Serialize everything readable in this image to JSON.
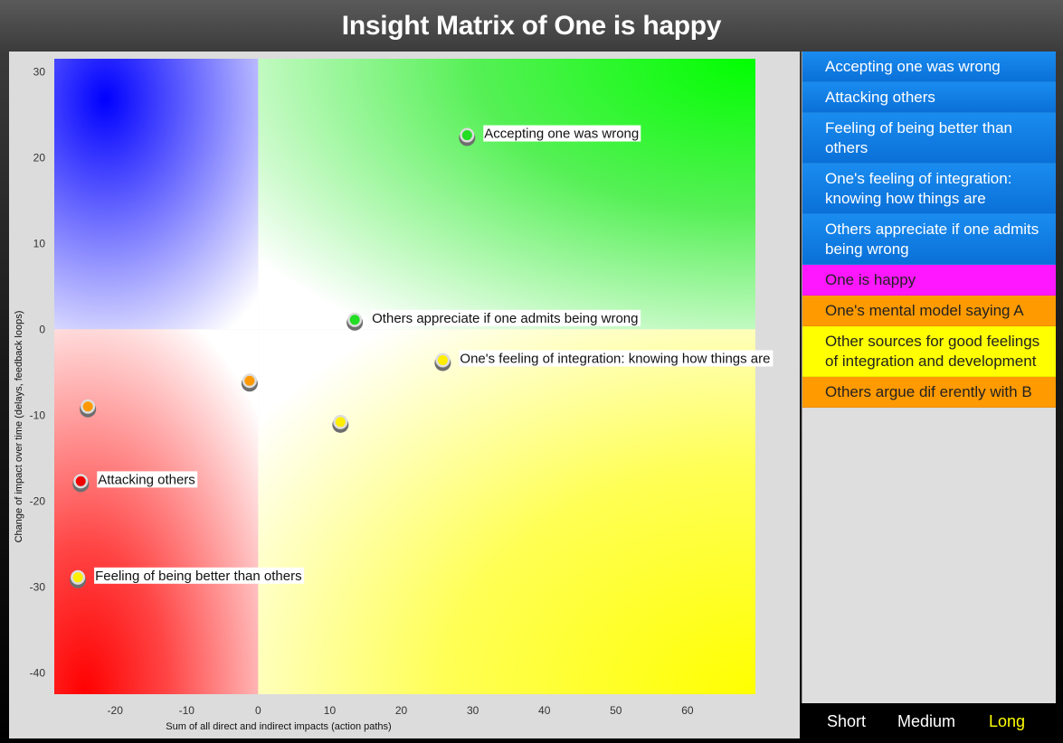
{
  "title": "Insight Matrix of One is happy",
  "sidebar": {
    "items": [
      {
        "label": "Accepting one was wrong",
        "style": "blue"
      },
      {
        "label": "Attacking others",
        "style": "blue"
      },
      {
        "label": "Feeling of being better than others",
        "style": "blue"
      },
      {
        "label": "One's feeling of integration: knowing how things are",
        "style": "blue"
      },
      {
        "label": "Others appreciate if one admits being wrong",
        "style": "blue"
      },
      {
        "label": "One is happy",
        "style": "magenta"
      },
      {
        "label": "One's mental model saying A",
        "style": "orange"
      },
      {
        "label": "Other sources for good feelings of integration and development",
        "style": "yellow"
      },
      {
        "label": "Others argue dif erently with B",
        "style": "orange"
      }
    ]
  },
  "time_buttons": [
    {
      "label": "Short",
      "active": false
    },
    {
      "label": "Medium",
      "active": false
    },
    {
      "label": "Long",
      "active": true
    }
  ],
  "colors": {
    "green": "#22dd22",
    "red": "#ee0000",
    "yellow": "#ffee00",
    "orange": "#ff9900",
    "active_button": "#ffff00"
  },
  "chart_data": {
    "type": "scatter",
    "xlabel": "Sum of all direct and indirect impacts (action paths)",
    "ylabel": "Change of impact over time (delays, feedback loops)",
    "xlim": [
      -28.5,
      69.5
    ],
    "ylim": [
      -42.5,
      31.5
    ],
    "xticks": [
      -20,
      -10,
      0,
      10,
      20,
      30,
      40,
      50,
      60
    ],
    "yticks": [
      30,
      20,
      10,
      0,
      -10,
      -20,
      -30,
      -40
    ],
    "quadrants": {
      "top_left": "blue",
      "top_right": "green",
      "bottom_left": "red",
      "bottom_right": "yellow"
    },
    "points": [
      {
        "x": 29.2,
        "y": 22.6,
        "color": "green",
        "label": "Accepting one was wrong"
      },
      {
        "x": 13.5,
        "y": 1.1,
        "color": "green",
        "label": "Others appreciate if one admits being wrong"
      },
      {
        "x": 25.8,
        "y": -3.6,
        "color": "yellow",
        "label": "One's feeling of integration: knowing how things are"
      },
      {
        "x": -1.2,
        "y": -6.0,
        "color": "orange",
        "label": ""
      },
      {
        "x": -23.8,
        "y": -9.0,
        "color": "orange",
        "label": ""
      },
      {
        "x": 11.5,
        "y": -10.8,
        "color": "yellow",
        "label": ""
      },
      {
        "x": -24.8,
        "y": -17.7,
        "color": "red",
        "label": "Attacking others"
      },
      {
        "x": -25.2,
        "y": -28.9,
        "color": "yellow",
        "label": "Feeling of being better than others"
      }
    ]
  }
}
